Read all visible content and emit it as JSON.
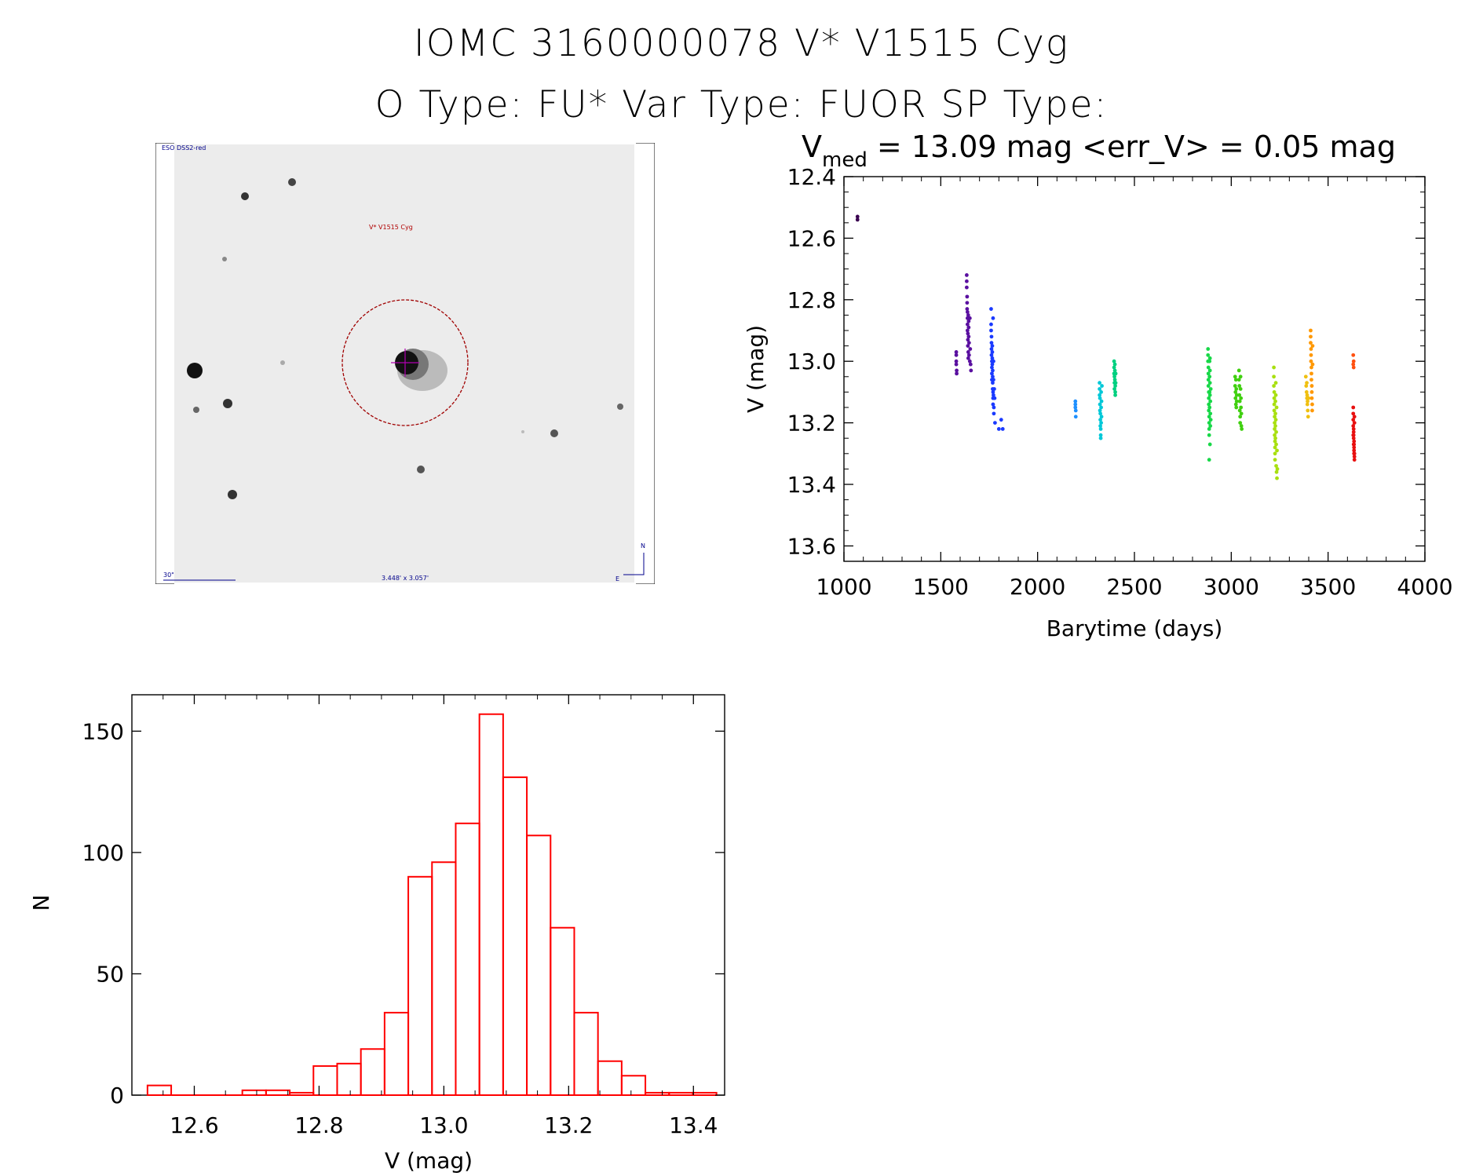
{
  "header": {
    "line1": "IOMC 3160000078    V* V1515 Cyg",
    "line2": "O Type: FU*  Var Type: FUOR  SP Type:"
  },
  "sky_image": {
    "survey_label": "ESO DSS2-red",
    "target_label": "V* V1515 Cyg",
    "scale_label": "30\"",
    "fov_label": "3.448' x 3.057'",
    "north_label": "N",
    "east_label": "E"
  },
  "chart_data": [
    {
      "type": "scatter",
      "title_main": "V",
      "title_sub": "med",
      "title_rest": " = 13.09 mag <err_V> = 0.05 mag",
      "xlabel": "Barytime (days)",
      "ylabel": "V (mag)",
      "xlim": [
        1000,
        4000
      ],
      "ylim": [
        13.65,
        12.4
      ],
      "y_inverted": true,
      "xticks": [
        "1000",
        "1500",
        "2000",
        "2500",
        "3000",
        "3500",
        "4000"
      ],
      "yticks": [
        "12.4",
        "12.6",
        "12.8",
        "13.0",
        "13.2",
        "13.4",
        "13.6"
      ],
      "series": [
        {
          "color": "#3a0050",
          "x": [
            1070,
            1070
          ],
          "y": [
            12.53,
            12.54
          ]
        },
        {
          "color": "#5a10a0",
          "x": [
            1580,
            1580,
            1580,
            1580,
            1582,
            1582
          ],
          "y": [
            12.97,
            12.98,
            13.0,
            13.01,
            13.03,
            13.04
          ]
        },
        {
          "color": "#5a10a0",
          "x": [
            1634,
            1634,
            1634,
            1636,
            1636,
            1636,
            1638,
            1638,
            1638,
            1638,
            1640,
            1640,
            1640,
            1642,
            1642,
            1642,
            1644,
            1644,
            1644,
            1646,
            1646,
            1650,
            1650,
            1652,
            1654,
            1656
          ],
          "y": [
            12.72,
            12.74,
            12.76,
            12.79,
            12.81,
            12.83,
            12.84,
            12.86,
            12.88,
            12.9,
            12.91,
            12.93,
            12.95,
            12.97,
            12.99,
            12.85,
            12.87,
            12.89,
            12.92,
            12.94,
            12.98,
            12.86,
            13.0,
            12.96,
            13.01,
            13.03
          ]
        },
        {
          "color": "#1a3aff",
          "x": [
            1760,
            1760,
            1760,
            1762,
            1762,
            1762,
            1762,
            1764,
            1764,
            1764,
            1764,
            1766,
            1766,
            1766,
            1766,
            1768,
            1768,
            1768,
            1768,
            1770,
            1770,
            1770,
            1772,
            1772,
            1772,
            1774,
            1774,
            1776,
            1778,
            1780,
            1800,
            1812,
            1820,
            1770
          ],
          "y": [
            12.83,
            12.88,
            12.9,
            12.92,
            12.94,
            12.96,
            12.98,
            13.0,
            13.02,
            13.04,
            13.06,
            12.95,
            12.97,
            12.99,
            13.01,
            13.03,
            13.05,
            13.07,
            13.09,
            13.1,
            13.12,
            13.14,
            13.0,
            13.06,
            13.11,
            13.15,
            13.17,
            13.09,
            13.12,
            13.2,
            13.22,
            13.19,
            13.22,
            12.86
          ]
        },
        {
          "color": "#1e90ff",
          "x": [
            2195,
            2195,
            2195,
            2197,
            2197
          ],
          "y": [
            13.13,
            13.14,
            13.15,
            13.16,
            13.18
          ]
        },
        {
          "color": "#00c8d8",
          "x": [
            2320,
            2320,
            2320,
            2322,
            2322,
            2322,
            2324,
            2324,
            2324,
            2326,
            2326,
            2326,
            2328,
            2328,
            2328,
            2330,
            2330,
            2332
          ],
          "y": [
            13.07,
            13.09,
            13.11,
            13.12,
            13.14,
            13.16,
            13.17,
            13.19,
            13.21,
            13.22,
            13.24,
            13.25,
            13.1,
            13.15,
            13.2,
            13.13,
            13.18,
            13.08
          ]
        },
        {
          "color": "#00d080",
          "x": [
            2395,
            2395,
            2395,
            2397,
            2397,
            2397,
            2399,
            2399,
            2399,
            2401,
            2401,
            2401,
            2403,
            2403
          ],
          "y": [
            13.0,
            13.02,
            13.04,
            13.05,
            13.07,
            13.09,
            13.01,
            13.03,
            13.06,
            13.08,
            13.1,
            13.11,
            13.04,
            13.07
          ]
        },
        {
          "color": "#18d848",
          "x": [
            2880,
            2880,
            2880,
            2882,
            2882,
            2882,
            2882,
            2884,
            2884,
            2884,
            2884,
            2886,
            2886,
            2886,
            2886,
            2888,
            2888,
            2888,
            2888,
            2890,
            2890,
            2890,
            2890,
            2892,
            2892,
            2892,
            2894,
            2894,
            2890,
            2886
          ],
          "y": [
            12.96,
            12.98,
            13.0,
            13.02,
            13.04,
            13.06,
            13.08,
            13.1,
            13.12,
            13.14,
            13.16,
            13.18,
            13.2,
            13.22,
            13.24,
            13.0,
            13.05,
            13.1,
            13.15,
            12.99,
            13.03,
            13.07,
            13.11,
            13.13,
            13.17,
            13.21,
            13.09,
            13.19,
            13.27,
            13.32
          ]
        },
        {
          "color": "#40d010",
          "x": [
            3020,
            3020,
            3022,
            3022,
            3024,
            3024,
            3026,
            3026,
            3028,
            3028,
            3040,
            3040,
            3042,
            3042,
            3044,
            3044,
            3046,
            3046,
            3048,
            3048,
            3050,
            3050,
            3052,
            3052,
            3054
          ],
          "y": [
            13.05,
            13.08,
            13.1,
            13.12,
            13.06,
            13.14,
            13.09,
            13.15,
            13.11,
            13.13,
            13.03,
            13.06,
            13.08,
            13.11,
            13.13,
            13.16,
            13.18,
            13.2,
            13.05,
            13.09,
            13.12,
            13.15,
            13.17,
            13.21,
            13.22
          ]
        },
        {
          "color": "#a8e010",
          "x": [
            3220,
            3220,
            3220,
            3222,
            3222,
            3222,
            3222,
            3224,
            3224,
            3224,
            3224,
            3226,
            3226,
            3226,
            3226,
            3228,
            3228,
            3228,
            3228,
            3230,
            3230,
            3230,
            3232,
            3232,
            3232,
            3234,
            3234,
            3236,
            3236,
            3238
          ],
          "y": [
            13.02,
            13.05,
            13.08,
            13.1,
            13.12,
            13.14,
            13.16,
            13.18,
            13.2,
            13.22,
            13.24,
            13.26,
            13.28,
            13.3,
            13.32,
            13.13,
            13.17,
            13.21,
            13.25,
            13.07,
            13.11,
            13.19,
            13.23,
            13.27,
            13.34,
            13.15,
            13.36,
            13.38,
            13.29,
            13.35
          ]
        },
        {
          "color": "#f0c010",
          "x": [
            3385,
            3387,
            3389,
            3391,
            3393,
            3395,
            3397,
            3399,
            3390,
            3392,
            3394
          ],
          "y": [
            13.05,
            13.08,
            13.1,
            13.12,
            13.14,
            13.16,
            13.18,
            13.12,
            13.07,
            13.11,
            13.13
          ]
        },
        {
          "color": "#ff9800",
          "x": [
            3410,
            3410,
            3410,
            3412,
            3412,
            3412,
            3414,
            3414,
            3414,
            3416,
            3416,
            3416,
            3418,
            3418,
            3420,
            3420
          ],
          "y": [
            12.9,
            12.92,
            12.94,
            12.96,
            12.98,
            13.0,
            13.02,
            13.04,
            13.06,
            13.08,
            13.1,
            13.12,
            13.14,
            13.16,
            12.95,
            13.01
          ]
        },
        {
          "color": "#ff5010",
          "x": [
            3630,
            3630,
            3632,
            3632
          ],
          "y": [
            12.98,
            13.01,
            13.0,
            13.02
          ]
        },
        {
          "color": "#e81010",
          "x": [
            3630,
            3630,
            3630,
            3630,
            3632,
            3632,
            3632,
            3632,
            3634,
            3634,
            3634,
            3634,
            3636,
            3636,
            3636,
            3636,
            3630,
            3632,
            3634,
            3636
          ],
          "y": [
            13.15,
            13.17,
            13.19,
            13.21,
            13.22,
            13.23,
            13.24,
            13.25,
            13.26,
            13.27,
            13.28,
            13.29,
            13.3,
            13.31,
            13.32,
            13.2,
            13.24,
            13.27,
            13.3,
            13.18
          ]
        }
      ]
    },
    {
      "type": "bar",
      "xlabel": "V (mag)",
      "ylabel": "N",
      "xlim": [
        12.5,
        13.45
      ],
      "ylim": [
        0,
        165
      ],
      "xticks": [
        "12.6",
        "12.8",
        "13.0",
        "13.2",
        "13.4"
      ],
      "yticks": [
        "0",
        "50",
        "100",
        "150"
      ],
      "bar_color": "#ff0000",
      "bin_width": 0.038,
      "bin_starts": [
        12.525,
        12.563,
        12.601,
        12.639,
        12.677,
        12.715,
        12.753,
        12.791,
        12.829,
        12.867,
        12.905,
        12.943,
        12.981,
        13.019,
        13.057,
        13.095,
        13.133,
        13.171,
        13.209,
        13.247,
        13.285,
        13.323,
        13.361,
        13.399
      ],
      "values": [
        4,
        0,
        0,
        0,
        2,
        2,
        1,
        12,
        13,
        19,
        34,
        90,
        96,
        112,
        157,
        131,
        107,
        69,
        34,
        14,
        8,
        1,
        1,
        1
      ]
    }
  ]
}
